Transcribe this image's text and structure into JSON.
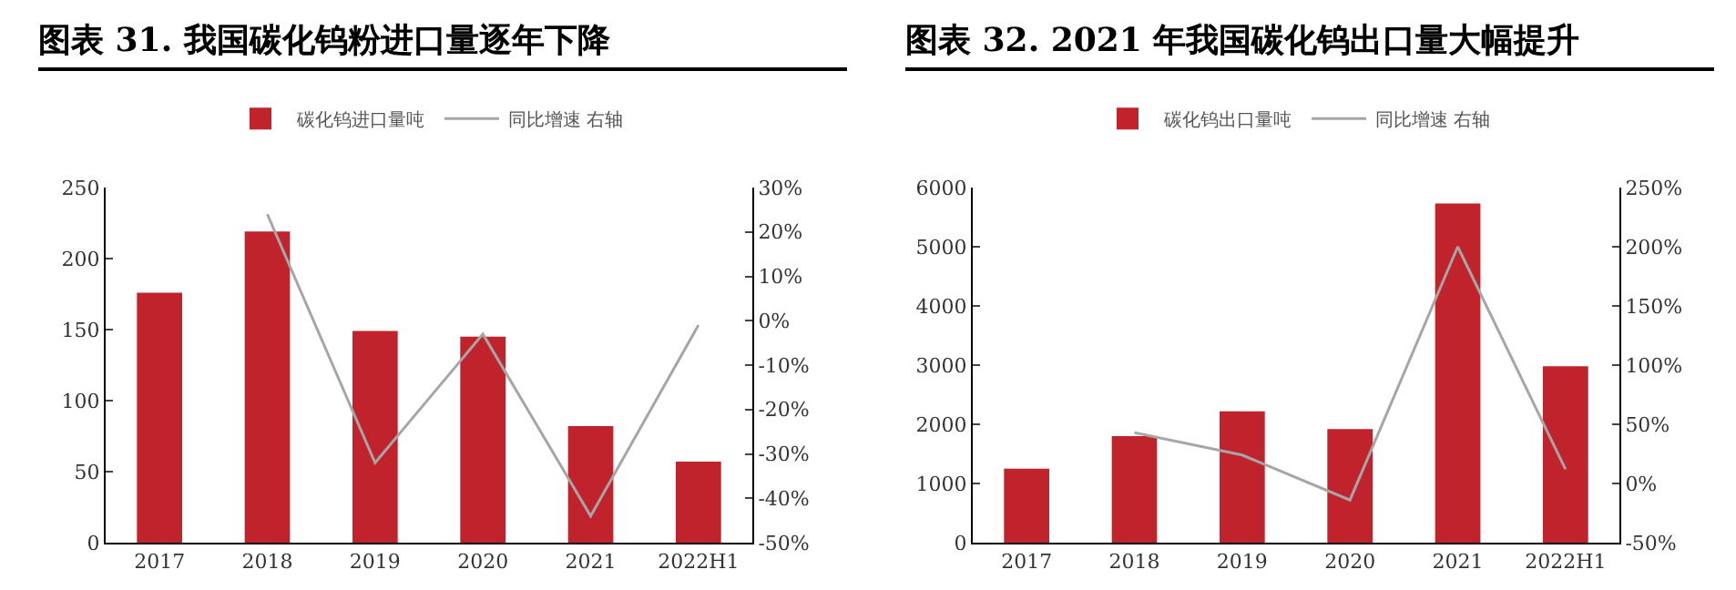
{
  "chart_data": [
    {
      "type": "bar",
      "title": "图表 31. 我国碳化钨粉进口量逐年下降",
      "categories": [
        "2017",
        "2018",
        "2019",
        "2020",
        "2021",
        "2022H1"
      ],
      "series": [
        {
          "name": "碳化钨进口量吨",
          "color": "#c0232c",
          "values": [
            176,
            219,
            149,
            145,
            82,
            57
          ]
        },
        {
          "name": "同比增速 右轴",
          "type": "line",
          "axis": "y2",
          "color": "#a6a6a6",
          "values": [
            null,
            24,
            -32,
            -3,
            -44,
            -1
          ]
        }
      ],
      "ylim": [
        0,
        250
      ],
      "yticks": [
        0,
        50,
        100,
        150,
        200,
        250
      ],
      "y2lim": [
        -50,
        30
      ],
      "y2ticks": [
        {
          "value": -50,
          "label": "-50%"
        },
        {
          "value": -40,
          "label": "-40%"
        },
        {
          "value": -30,
          "label": "-30%"
        },
        {
          "value": -20,
          "label": "-20%"
        },
        {
          "value": -10,
          "label": "-10%"
        },
        {
          "value": 0,
          "label": "0%"
        },
        {
          "value": 10,
          "label": "10%"
        },
        {
          "value": 20,
          "label": "20%"
        },
        {
          "value": 30,
          "label": "30%"
        }
      ],
      "grid": false,
      "legend": "top",
      "marker": "none",
      "line_style": "solid"
    },
    {
      "type": "bar",
      "title": "图表 32. 2021 年我国碳化钨出口量大幅提升",
      "categories": [
        "2017",
        "2018",
        "2019",
        "2020",
        "2021",
        "2022H1"
      ],
      "series": [
        {
          "name": "碳化钨出口量吨",
          "color": "#c0232c",
          "values": [
            1250,
            1800,
            2220,
            1920,
            5730,
            2980
          ]
        },
        {
          "name": "同比增速 右轴",
          "type": "line",
          "axis": "y2",
          "color": "#a6a6a6",
          "values": [
            null,
            43,
            24,
            -14,
            200,
            12
          ]
        }
      ],
      "ylim": [
        0,
        6000
      ],
      "yticks": [
        0,
        1000,
        2000,
        3000,
        4000,
        5000,
        6000
      ],
      "y2lim": [
        -50,
        250
      ],
      "y2ticks": [
        {
          "value": -50,
          "label": "-50%"
        },
        {
          "value": 0,
          "label": "0%"
        },
        {
          "value": 50,
          "label": "50%"
        },
        {
          "value": 100,
          "label": "100%"
        },
        {
          "value": 150,
          "label": "150%"
        },
        {
          "value": 200,
          "label": "200%"
        },
        {
          "value": 250,
          "label": "250%"
        }
      ],
      "grid": false,
      "legend": "top",
      "marker": "none",
      "line_style": "solid"
    }
  ]
}
